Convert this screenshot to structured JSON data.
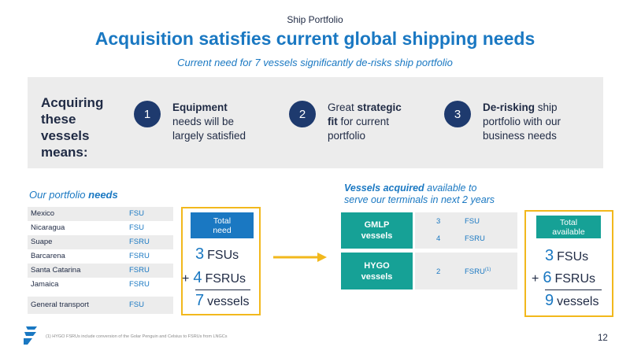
{
  "header": {
    "section": "Ship Portfolio",
    "title": "Acquisition satisfies current global shipping needs",
    "subtitle": "Current need for 7 vessels significantly de-risks ship portfolio"
  },
  "means": {
    "heading_lines": [
      "Acquiring",
      "these",
      "vessels",
      "means:"
    ],
    "steps": [
      {
        "number": "1",
        "bold": "Equipment",
        "rest_line1": "",
        "rest_line2": "needs will be",
        "rest_line3": "largely satisfied"
      },
      {
        "number": "2",
        "prefix": "Great ",
        "bold": "strategic",
        "bold2": "fit",
        "rest2": " for current",
        "rest3": "portfolio"
      },
      {
        "number": "3",
        "bold": "De-risking",
        "rest1": " ship",
        "rest2": "portfolio with our",
        "rest3": "business needs"
      }
    ]
  },
  "needs": {
    "heading_italic": "Our portfolio ",
    "heading_bold": "needs",
    "rows": [
      {
        "location": "Mexico",
        "type": "FSU"
      },
      {
        "location": "Nicaragua",
        "type": "FSU"
      },
      {
        "location": "Suape",
        "type": "FSRU"
      },
      {
        "location": "Barcarena",
        "type": "FSRU"
      },
      {
        "location": "Santa Catarina",
        "type": "FSRU"
      },
      {
        "location": "Jamaica",
        "type": "FSRU"
      },
      {
        "location": "General transport",
        "type": "FSU"
      }
    ],
    "total_head_line1": "Total",
    "total_head_line2": "need",
    "fsu_count": "3",
    "fsu_label": "FSUs",
    "plus": "+",
    "fsru_count": "4",
    "fsru_label": "FSRUs",
    "vessel_count": "7",
    "vessel_label": "vessels"
  },
  "acquired": {
    "heading_bold": "Vessels acquired",
    "heading_rest": " available to",
    "heading_line2": "serve our terminals in next 2 years",
    "groups": [
      {
        "line1": "GMLP",
        "line2": "vessels",
        "items": [
          {
            "count": "3",
            "type": "FSU"
          },
          {
            "count": "4",
            "type": "FSRU"
          }
        ]
      },
      {
        "line1": "HYGO",
        "line2": "vessels",
        "items": [
          {
            "count": "2",
            "type": "FSRU",
            "sup": "(1)"
          }
        ]
      }
    ],
    "total_head_line1": "Total",
    "total_head_line2": "available",
    "fsu_count": "3",
    "fsu_label": "FSUs",
    "plus": "+",
    "fsru_count": "6",
    "fsru_label": "FSRUs",
    "vessel_count": "9",
    "vessel_label": "vessels"
  },
  "footer": {
    "footnote": "(1)    HYGO FSRUs include conversion of the Golar Penguin and Celsius to FSRUs from LNGCs",
    "page_number": "12"
  },
  "colors": {
    "brand_blue": "#1a78c2",
    "navy": "#1e3a6e",
    "teal": "#16a196",
    "gold": "#f2b81c",
    "gray": "#ececec"
  }
}
